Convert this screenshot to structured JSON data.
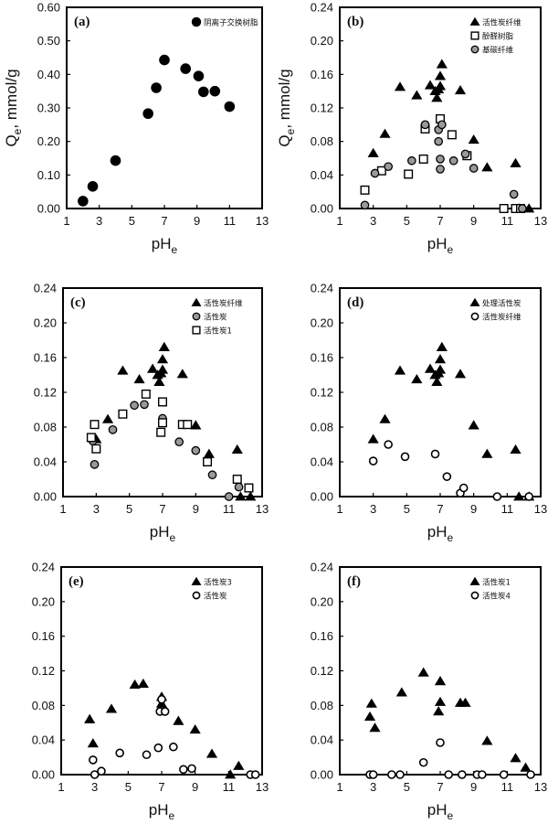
{
  "chart_data": [
    {
      "type": "scatter",
      "panel_label": "(a)",
      "xlabel": {
        "main": "pH",
        "sub": "e"
      },
      "ylabel": {
        "main": "Q",
        "sub": "e",
        "rest": ", mmol/g"
      },
      "xlim": [
        1,
        13
      ],
      "xticks": [
        1,
        3,
        5,
        7,
        9,
        11,
        13
      ],
      "ylim": [
        0,
        0.6
      ],
      "yticks": [
        "0.00",
        "0.10",
        "0.20",
        "0.30",
        "0.40",
        "0.50",
        "0.60"
      ],
      "grid": false,
      "legend": "top-right",
      "series": [
        {
          "name": "阴离子交换树脂",
          "marker": "filled-circle",
          "points": [
            [
              2.0,
              0.022
            ],
            [
              2.6,
              0.066
            ],
            [
              4.0,
              0.143
            ],
            [
              6.0,
              0.283
            ],
            [
              6.5,
              0.36
            ],
            [
              7.0,
              0.443
            ],
            [
              8.3,
              0.417
            ],
            [
              9.1,
              0.395
            ],
            [
              9.4,
              0.348
            ],
            [
              10.1,
              0.35
            ],
            [
              11.0,
              0.304
            ]
          ]
        }
      ]
    },
    {
      "type": "scatter",
      "panel_label": "(b)",
      "xlabel": {
        "main": "pH",
        "sub": "e"
      },
      "ylabel": {
        "main": "Q",
        "sub": "e",
        "rest": ", mmol/g"
      },
      "xlim": [
        1,
        13
      ],
      "xticks": [
        1,
        3,
        5,
        7,
        9,
        11,
        13
      ],
      "ylim": [
        0,
        0.24
      ],
      "yticks": [
        "0.00",
        "0.04",
        "0.08",
        "0.12",
        "0.16",
        "0.20",
        "0.24"
      ],
      "grid": false,
      "legend": "top-right",
      "series": [
        {
          "name": "活性炭纤维",
          "marker": "filled-triangle",
          "points": [
            [
              3.0,
              0.066
            ],
            [
              3.7,
              0.089
            ],
            [
              4.6,
              0.145
            ],
            [
              5.6,
              0.135
            ],
            [
              6.4,
              0.147
            ],
            [
              6.7,
              0.14
            ],
            [
              6.8,
              0.132
            ],
            [
              6.9,
              0.142
            ],
            [
              7.0,
              0.158
            ],
            [
              7.0,
              0.146
            ],
            [
              7.1,
              0.172
            ],
            [
              8.2,
              0.141
            ],
            [
              9.0,
              0.082
            ],
            [
              9.8,
              0.049
            ],
            [
              11.5,
              0.054
            ],
            [
              11.7,
              0
            ],
            [
              12.3,
              0
            ]
          ]
        },
        {
          "name": "酚醛树脂",
          "marker": "open-square",
          "points": [
            [
              2.5,
              0.022
            ],
            [
              3.5,
              0.045
            ],
            [
              5.1,
              0.041
            ],
            [
              6.0,
              0.059
            ],
            [
              6.1,
              0.095
            ],
            [
              7.0,
              0.107
            ],
            [
              7.7,
              0.088
            ],
            [
              8.6,
              0.063
            ],
            [
              10.8,
              0
            ],
            [
              11.5,
              0
            ],
            [
              11.8,
              0
            ]
          ]
        },
        {
          "name": "基碳纤维",
          "marker": "gray-circle",
          "points": [
            [
              2.5,
              0.004
            ],
            [
              3.1,
              0.042
            ],
            [
              3.9,
              0.05
            ],
            [
              5.3,
              0.057
            ],
            [
              6.1,
              0.1
            ],
            [
              6.9,
              0.094
            ],
            [
              6.9,
              0.08
            ],
            [
              7.1,
              0.1
            ],
            [
              7.0,
              0.059
            ],
            [
              7.0,
              0.047
            ],
            [
              7.8,
              0.057
            ],
            [
              8.5,
              0.065
            ],
            [
              9.0,
              0.048
            ],
            [
              11.4,
              0.017
            ],
            [
              11.9,
              0
            ]
          ]
        }
      ]
    },
    {
      "type": "scatter",
      "panel_label": "(c)",
      "xlabel": {
        "main": "pH",
        "sub": "e"
      },
      "xlim": [
        1,
        13
      ],
      "xticks": [
        1,
        3,
        5,
        7,
        9,
        11,
        13
      ],
      "ylim": [
        0,
        0.24
      ],
      "yticks": [
        "0.00",
        "0.04",
        "0.08",
        "0.12",
        "0.16",
        "0.20",
        "0.24"
      ],
      "grid": false,
      "legend": "top-right",
      "series": [
        {
          "name": "活性炭纤维",
          "marker": "filled-triangle",
          "points": [
            [
              3.0,
              0.066
            ],
            [
              3.7,
              0.089
            ],
            [
              4.6,
              0.145
            ],
            [
              5.6,
              0.135
            ],
            [
              6.4,
              0.147
            ],
            [
              6.7,
              0.14
            ],
            [
              6.8,
              0.132
            ],
            [
              6.9,
              0.142
            ],
            [
              7.0,
              0.158
            ],
            [
              7.0,
              0.146
            ],
            [
              7.1,
              0.172
            ],
            [
              8.2,
              0.141
            ],
            [
              9.0,
              0.082
            ],
            [
              9.8,
              0.049
            ],
            [
              11.5,
              0.054
            ],
            [
              11.7,
              0
            ],
            [
              12.3,
              0
            ]
          ]
        },
        {
          "name": "活性炭",
          "marker": "gray-circle",
          "points": [
            [
              2.8,
              0.064
            ],
            [
              2.9,
              0.037
            ],
            [
              4.0,
              0.077
            ],
            [
              5.3,
              0.105
            ],
            [
              5.9,
              0.106
            ],
            [
              7.0,
              0.09
            ],
            [
              8.0,
              0.063
            ],
            [
              9.0,
              0.053
            ],
            [
              10.0,
              0.025
            ],
            [
              11.0,
              0
            ],
            [
              11.6,
              0.011
            ]
          ]
        },
        {
          "name": "活性炭1",
          "marker": "open-square",
          "points": [
            [
              2.7,
              0.068
            ],
            [
              2.9,
              0.083
            ],
            [
              3.0,
              0.055
            ],
            [
              4.6,
              0.095
            ],
            [
              6.0,
              0.118
            ],
            [
              7.0,
              0.109
            ],
            [
              6.9,
              0.074
            ],
            [
              7.0,
              0.085
            ],
            [
              8.2,
              0.083
            ],
            [
              8.5,
              0.083
            ],
            [
              9.7,
              0.04
            ],
            [
              11.5,
              0.02
            ],
            [
              12.2,
              0.01
            ]
          ]
        }
      ]
    },
    {
      "type": "scatter",
      "panel_label": "(d)",
      "xlabel": {
        "main": "pH",
        "sub": "e"
      },
      "xlim": [
        1,
        13
      ],
      "xticks": [
        1,
        3,
        5,
        7,
        9,
        11,
        13
      ],
      "ylim": [
        0,
        0.24
      ],
      "yticks": [
        "0.00",
        "0.04",
        "0.08",
        "0.12",
        "0.16",
        "0.20",
        "0.24"
      ],
      "grid": false,
      "legend": "top-right",
      "series": [
        {
          "name": "处理活性炭",
          "marker": "filled-triangle",
          "points": [
            [
              3.0,
              0.066
            ],
            [
              3.7,
              0.089
            ],
            [
              4.6,
              0.145
            ],
            [
              5.6,
              0.135
            ],
            [
              6.4,
              0.147
            ],
            [
              6.7,
              0.14
            ],
            [
              6.8,
              0.132
            ],
            [
              6.9,
              0.142
            ],
            [
              7.0,
              0.158
            ],
            [
              7.0,
              0.146
            ],
            [
              7.1,
              0.172
            ],
            [
              8.2,
              0.141
            ],
            [
              9.0,
              0.082
            ],
            [
              9.8,
              0.049
            ],
            [
              11.5,
              0.054
            ],
            [
              11.7,
              0
            ],
            [
              12.3,
              0
            ]
          ]
        },
        {
          "name": "活性炭纤维",
          "marker": "open-circle",
          "points": [
            [
              3.0,
              0.041
            ],
            [
              3.9,
              0.06
            ],
            [
              4.9,
              0.046
            ],
            [
              6.7,
              0.049
            ],
            [
              7.4,
              0.023
            ],
            [
              8.2,
              0.004
            ],
            [
              8.4,
              0.01
            ],
            [
              10.4,
              0
            ],
            [
              12.3,
              0
            ]
          ]
        }
      ]
    },
    {
      "type": "scatter",
      "panel_label": "(e)",
      "xlabel": {
        "main": "pH",
        "sub": "e"
      },
      "xlim": [
        1,
        13
      ],
      "xticks": [
        1,
        3,
        5,
        7,
        9,
        11,
        13
      ],
      "ylim": [
        0,
        0.24
      ],
      "yticks": [
        "0.00",
        "0.04",
        "0.08",
        "0.12",
        "0.16",
        "0.20",
        "0.24"
      ],
      "grid": false,
      "legend": "top-right",
      "series": [
        {
          "name": "活性炭3",
          "marker": "filled-triangle",
          "points": [
            [
              2.7,
              0.064
            ],
            [
              2.9,
              0.036
            ],
            [
              4.0,
              0.076
            ],
            [
              5.4,
              0.104
            ],
            [
              5.9,
              0.105
            ],
            [
              7.0,
              0.09
            ],
            [
              7.0,
              0.082
            ],
            [
              8.0,
              0.062
            ],
            [
              9.0,
              0.052
            ],
            [
              10.0,
              0.024
            ],
            [
              11.1,
              0
            ],
            [
              11.6,
              0.01
            ]
          ]
        },
        {
          "name": "活性炭",
          "marker": "open-circle",
          "points": [
            [
              2.9,
              0.017
            ],
            [
              3.0,
              0
            ],
            [
              3.4,
              0.004
            ],
            [
              4.5,
              0.025
            ],
            [
              6.1,
              0.023
            ],
            [
              6.8,
              0.031
            ],
            [
              7.0,
              0.087
            ],
            [
              6.9,
              0.073
            ],
            [
              7.2,
              0.073
            ],
            [
              7.7,
              0.032
            ],
            [
              8.3,
              0.006
            ],
            [
              8.8,
              0.007
            ],
            [
              12.3,
              0
            ],
            [
              12.6,
              0
            ]
          ]
        }
      ]
    },
    {
      "type": "scatter",
      "panel_label": "(f)",
      "xlabel": {
        "main": "pH",
        "sub": "e"
      },
      "xlim": [
        1,
        13
      ],
      "xticks": [
        1,
        3,
        5,
        7,
        9,
        11,
        13
      ],
      "ylim": [
        0,
        0.24
      ],
      "yticks": [
        "0.00",
        "0.04",
        "0.08",
        "0.12",
        "0.16",
        "0.20",
        "0.24"
      ],
      "grid": false,
      "legend": "top-right",
      "series": [
        {
          "name": "活性炭1",
          "marker": "filled-triangle",
          "points": [
            [
              2.8,
              0.067
            ],
            [
              2.9,
              0.082
            ],
            [
              3.1,
              0.054
            ],
            [
              4.7,
              0.095
            ],
            [
              6.0,
              0.118
            ],
            [
              7.0,
              0.108
            ],
            [
              7.0,
              0.084
            ],
            [
              6.9,
              0.073
            ],
            [
              8.2,
              0.083
            ],
            [
              8.5,
              0.083
            ],
            [
              9.8,
              0.039
            ],
            [
              11.5,
              0.019
            ],
            [
              12.1,
              0.008
            ]
          ]
        },
        {
          "name": "活性炭4",
          "marker": "open-circle",
          "points": [
            [
              2.8,
              0
            ],
            [
              3.0,
              0
            ],
            [
              4.1,
              0
            ],
            [
              4.6,
              0
            ],
            [
              6.0,
              0.014
            ],
            [
              7.0,
              0.037
            ],
            [
              7.5,
              0
            ],
            [
              8.3,
              0
            ],
            [
              9.2,
              0
            ],
            [
              9.5,
              0
            ],
            [
              10.8,
              0
            ],
            [
              12.4,
              0
            ]
          ]
        }
      ]
    }
  ]
}
